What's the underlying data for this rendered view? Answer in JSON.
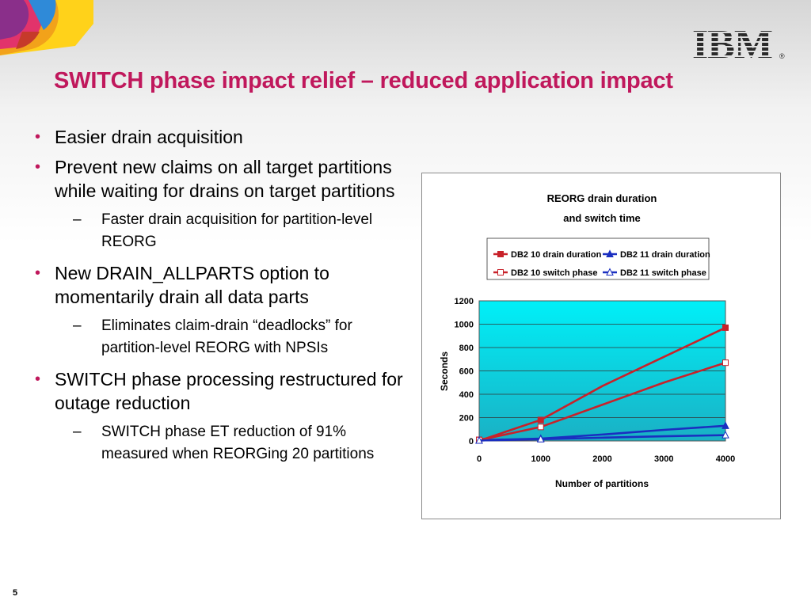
{
  "slide": {
    "title": "SWITCH phase impact relief – reduced application impact",
    "number": "5",
    "logo_text": "IBM",
    "accent_color": "#c0185c"
  },
  "bullets": [
    {
      "text": "Easier drain acquisition"
    },
    {
      "text": "Prevent new claims on all target partitions while waiting for drains on target partitions",
      "sub": [
        "Faster drain acquisition for partition-level REORG"
      ]
    },
    {
      "text": "New DRAIN_ALLPARTS option to momentarily drain all data parts",
      "sub": [
        "Eliminates claim-drain “deadlocks” for partition-level REORG with NPSIs"
      ]
    },
    {
      "text": "SWITCH phase processing restructured for outage reduction",
      "sub": [
        "SWITCH phase ET reduction of 91% measured when REORGing 20 partitions"
      ]
    }
  ],
  "chart_data": {
    "type": "line",
    "title": [
      "REORG drain duration",
      "and switch time"
    ],
    "xlabel": "Number of partitions",
    "ylabel": "Seconds",
    "xlim": [
      0,
      4000
    ],
    "ylim": [
      0,
      1200
    ],
    "xticks": [
      0,
      1000,
      2000,
      3000,
      4000
    ],
    "yticks": [
      0,
      200,
      400,
      600,
      800,
      1000,
      1200
    ],
    "grid": true,
    "legend_position": "top",
    "plot_background": "gradient cyan",
    "series": [
      {
        "name": "DB2 10 drain duration",
        "color": "#c8222a",
        "marker": "square-filled",
        "points": [
          [
            0,
            10
          ],
          [
            100,
            20
          ],
          [
            1000,
            180
          ],
          [
            2000,
            470
          ],
          [
            3000,
            720
          ],
          [
            4000,
            970
          ]
        ]
      },
      {
        "name": "DB2 11 drain duration",
        "color": "#1a2fc0",
        "marker": "triangle-filled",
        "points": [
          [
            0,
            5
          ],
          [
            100,
            8
          ],
          [
            1000,
            20
          ],
          [
            2000,
            55
          ],
          [
            3000,
            95
          ],
          [
            4000,
            130
          ]
        ]
      },
      {
        "name": "DB2 10 switch phase",
        "color": "#c8222a",
        "marker": "square-open",
        "points": [
          [
            0,
            8
          ],
          [
            100,
            18
          ],
          [
            1000,
            120
          ],
          [
            2000,
            310
          ],
          [
            3000,
            500
          ],
          [
            4000,
            670
          ]
        ]
      },
      {
        "name": "DB2 11 switch phase",
        "color": "#1a2fc0",
        "marker": "triangle-open",
        "points": [
          [
            0,
            3
          ],
          [
            100,
            5
          ],
          [
            1000,
            15
          ],
          [
            2000,
            28
          ],
          [
            3000,
            40
          ],
          [
            4000,
            50
          ]
        ]
      }
    ]
  }
}
